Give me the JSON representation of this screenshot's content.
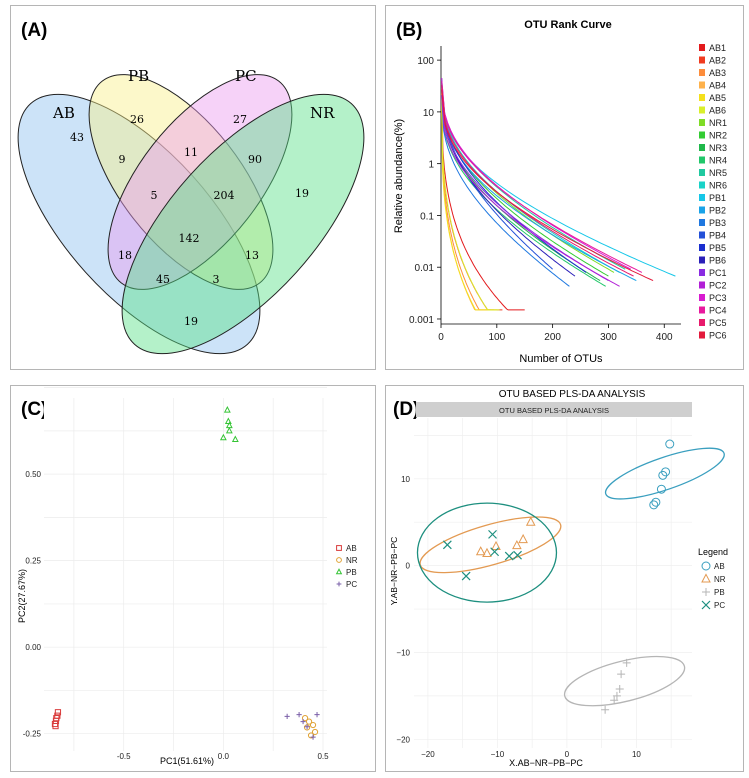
{
  "colors": {
    "venn_ab": "#8fc0f0",
    "venn_pb": "#f8f08a",
    "venn_pc": "#ec9cf0",
    "venn_nr": "#58e088",
    "ab_marker": "#d93b3b",
    "nr_marker": "#e0a234",
    "pb_marker": "#35c435",
    "pc_marker": "#7a5fa8",
    "plsda_ab": "#3a9fbf",
    "plsda_nr": "#e39a52",
    "plsda_pb": "#b5b5b5",
    "plsda_pc": "#1d8f7f",
    "strip": "#cfcfcf"
  },
  "panels": {
    "a": {
      "label": "(A)",
      "sets": [
        "AB",
        "PB",
        "PC",
        "NR"
      ],
      "counts": [
        "43",
        "26",
        "27",
        "19",
        "9",
        "11",
        "90",
        "5",
        "204",
        "142",
        "18",
        "13",
        "45",
        "3",
        "19"
      ]
    },
    "b": {
      "label": "(B)"
    },
    "c": {
      "label": "(C)"
    },
    "d": {
      "label": "(D)"
    }
  },
  "chart_data": [
    {
      "type": "line",
      "title": "OTU Rank Curve",
      "xlabel": "Number of OTUs",
      "ylabel": "Relative abundance(%)",
      "yscale": "log",
      "xlim": [
        0,
        430
      ],
      "ylim": [
        0.0008,
        150
      ],
      "xticks": [
        "0",
        "100",
        "200",
        "300",
        "400"
      ],
      "yticks": [
        "100",
        "10",
        "1",
        "0.1",
        "0.01",
        "0.001"
      ],
      "series": [
        {
          "name": "AB1",
          "color": "#e31a1c",
          "total_otus": 150
        },
        {
          "name": "AB2",
          "color": "#f03b20",
          "total_otus": 110
        },
        {
          "name": "AB3",
          "color": "#fd8d3c",
          "total_otus": 95
        },
        {
          "name": "AB4",
          "color": "#feb24c",
          "total_otus": 90
        },
        {
          "name": "AB5",
          "color": "#f4e01c",
          "total_otus": 100
        },
        {
          "name": "AB6",
          "color": "#d9ef2b",
          "total_otus": 105
        },
        {
          "name": "NR1",
          "color": "#7fdc26",
          "total_otus": 310
        },
        {
          "name": "NR2",
          "color": "#33cc33",
          "total_otus": 300
        },
        {
          "name": "NR3",
          "color": "#1fb84a",
          "total_otus": 285
        },
        {
          "name": "NR4",
          "color": "#21c76a",
          "total_otus": 295
        },
        {
          "name": "NR5",
          "color": "#20c9a0",
          "total_otus": 330
        },
        {
          "name": "NR6",
          "color": "#19d3c8",
          "total_otus": 320
        },
        {
          "name": "PB1",
          "color": "#16c7e8",
          "total_otus": 420
        },
        {
          "name": "PB2",
          "color": "#1aa3e8",
          "total_otus": 350
        },
        {
          "name": "PB3",
          "color": "#1f78e0",
          "total_otus": 230
        },
        {
          "name": "PB4",
          "color": "#2350d8",
          "total_otus": 200
        },
        {
          "name": "PB5",
          "color": "#1a2fcf",
          "total_otus": 260
        },
        {
          "name": "PB6",
          "color": "#2a1fb8",
          "total_otus": 240
        },
        {
          "name": "PC1",
          "color": "#8a2be2",
          "total_otus": 300
        },
        {
          "name": "PC2",
          "color": "#b21fd6",
          "total_otus": 320
        },
        {
          "name": "PC3",
          "color": "#d81bd0",
          "total_otus": 340
        },
        {
          "name": "PC4",
          "color": "#e8199e",
          "total_otus": 360
        },
        {
          "name": "PC5",
          "color": "#e81a6c",
          "total_otus": 345
        },
        {
          "name": "PC6",
          "color": "#e31a3c",
          "total_otus": 380
        }
      ]
    },
    {
      "type": "scatter",
      "xlabel": "PC1(51.61%)",
      "ylabel": "PC2(27.67%)",
      "xlim": [
        -0.9,
        0.52
      ],
      "ylim": [
        -0.3,
        0.72
      ],
      "xticks": [
        -0.5,
        0.0,
        0.5
      ],
      "xtick_labels": [
        "-0.5",
        "0.0",
        "0.5"
      ],
      "yticks": [
        -0.25,
        0.0,
        0.25,
        0.5
      ],
      "ytick_labels": [
        "-0.25",
        "0.00",
        "0.25",
        "0.50"
      ],
      "legend": [
        "AB",
        "NR",
        "PB",
        "PC"
      ],
      "series": [
        {
          "name": "AB",
          "marker": "square",
          "points": [
            [
              -0.83,
              -0.188
            ],
            [
              -0.833,
              -0.198
            ],
            [
              -0.838,
              -0.205
            ],
            [
              -0.84,
              -0.213
            ],
            [
              -0.845,
              -0.222
            ],
            [
              -0.842,
              -0.228
            ]
          ]
        },
        {
          "name": "NR",
          "marker": "circle",
          "points": [
            [
              0.41,
              -0.205
            ],
            [
              0.43,
              -0.215
            ],
            [
              0.45,
              -0.225
            ],
            [
              0.42,
              -0.232
            ],
            [
              0.46,
              -0.245
            ],
            [
              0.44,
              -0.255
            ]
          ]
        },
        {
          "name": "PB",
          "marker": "triangle",
          "points": [
            [
              0.02,
              0.685
            ],
            [
              0.025,
              0.652
            ],
            [
              0.03,
              0.64
            ],
            [
              0.03,
              0.625
            ],
            [
              0.0,
              0.605
            ],
            [
              0.06,
              0.6
            ]
          ]
        },
        {
          "name": "PC",
          "marker": "plus",
          "points": [
            [
              0.32,
              -0.2
            ],
            [
              0.38,
              -0.195
            ],
            [
              0.47,
              -0.195
            ],
            [
              0.4,
              -0.215
            ],
            [
              0.42,
              -0.23
            ],
            [
              0.45,
              -0.26
            ]
          ]
        }
      ]
    },
    {
      "type": "scatter",
      "title": "OTU BASED PLS-DA ANALYSIS",
      "strip_title": "OTU BASED PLS-DA ANALYSIS",
      "xlabel": "X.AB−NR−PB−PC",
      "ylabel": "Y.AB−NR−PB−PC",
      "xlim": [
        -22,
        18
      ],
      "ylim": [
        -21,
        17
      ],
      "xticks": [
        -20,
        -10,
        0,
        10
      ],
      "xtick_labels": [
        "−20",
        "−10",
        "0",
        "10"
      ],
      "yticks": [
        -20,
        -10,
        0,
        10
      ],
      "ytick_labels": [
        "−20",
        "−10",
        "0",
        "10"
      ],
      "legend_title": "Legend",
      "legend": [
        "AB",
        "NR",
        "PB",
        "PC"
      ],
      "series": [
        {
          "name": "AB",
          "marker": "circle",
          "points": [
            [
              14.8,
              14
            ],
            [
              14.2,
              10.8
            ],
            [
              13.8,
              10.4
            ],
            [
              13.6,
              8.8
            ],
            [
              12.8,
              7.3
            ],
            [
              12.5,
              7.0
            ]
          ]
        },
        {
          "name": "NR",
          "marker": "triangle",
          "points": [
            [
              -5.2,
              5.0
            ],
            [
              -6.3,
              3.0
            ],
            [
              -7.2,
              2.3
            ],
            [
              -10.2,
              2.2
            ],
            [
              -12.4,
              1.6
            ],
            [
              -11.5,
              1.4
            ]
          ]
        },
        {
          "name": "PB",
          "marker": "plus",
          "points": [
            [
              8.6,
              -11.2
            ],
            [
              7.8,
              -12.5
            ],
            [
              7.6,
              -14.2
            ],
            [
              7.2,
              -15.0
            ],
            [
              6.8,
              -15.5
            ],
            [
              5.5,
              -16.6
            ]
          ]
        },
        {
          "name": "PC",
          "marker": "x",
          "points": [
            [
              -17.2,
              2.4
            ],
            [
              -10.7,
              3.6
            ],
            [
              -10.4,
              1.6
            ],
            [
              -8.3,
              1.1
            ],
            [
              -7.1,
              1.2
            ],
            [
              -14.5,
              -1.2
            ]
          ]
        }
      ],
      "ellipses": [
        {
          "name": "AB",
          "cx": 14.1,
          "cy": 10.6,
          "rx": 2.3,
          "ry": 7.2,
          "angle": -71
        },
        {
          "name": "NR",
          "cx": -11,
          "cy": 2.4,
          "rx": 10.5,
          "ry": 2.3,
          "angle": 16
        },
        {
          "name": "PB",
          "cx": 8.3,
          "cy": -13.3,
          "rx": 2.9,
          "ry": 7.1,
          "angle": -76
        },
        {
          "name": "PC",
          "cx": -11.5,
          "cy": 1.5,
          "rx": 10,
          "ry": 5.7,
          "angle": 0
        }
      ]
    }
  ]
}
